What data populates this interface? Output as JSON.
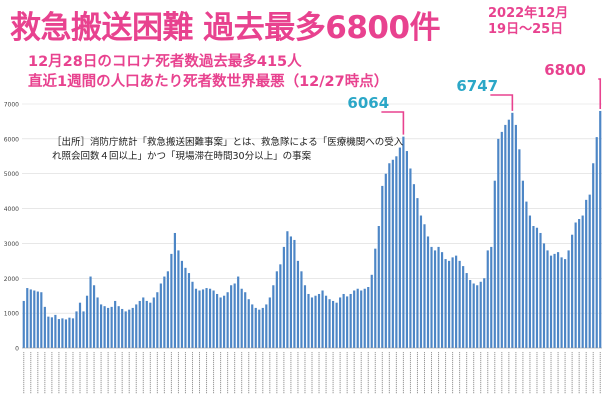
{
  "header": {
    "title": "救急搬送困難 過去最多6800件",
    "period_line1": "2022年12月",
    "period_line2": "19日～25日",
    "subtitle1": "12月28日のコロナ死者数過去最多415人",
    "subtitle2": "直近1週間の人口あたり死者数世界最悪（12/27時点）",
    "source_text": "［出所］消防庁統計「救急搬送困難事案」とは、救急隊による「医療機関への受入れ照会回数４回以上」かつ「現場滞在時間30分以上」の事案"
  },
  "colors": {
    "accent": "#e8428f",
    "bar": "#4d86c6",
    "peak_label": "#2ba7c7",
    "grid": "#d9d9d9"
  },
  "peak_labels": [
    {
      "text": "6064",
      "color": "#2ba7c7"
    },
    {
      "text": "6747",
      "color": "#2ba7c7"
    },
    {
      "text": "6800",
      "color": "#e8428f"
    }
  ],
  "chart_data": {
    "type": "bar",
    "title": "救急搬送困難 過去最多6800件",
    "xlabel": "",
    "ylabel": "",
    "ylim": [
      0,
      7000
    ],
    "yticks": [
      0,
      1000,
      2000,
      3000,
      4000,
      5000,
      6000,
      7000
    ],
    "grid": true,
    "values": [
      1350,
      1720,
      1680,
      1650,
      1620,
      1600,
      1180,
      900,
      880,
      950,
      830,
      850,
      820,
      870,
      850,
      1050,
      1300,
      1050,
      1500,
      2050,
      1800,
      1450,
      1250,
      1200,
      1150,
      1180,
      1350,
      1200,
      1120,
      1050,
      1100,
      1150,
      1250,
      1350,
      1450,
      1350,
      1300,
      1450,
      1600,
      1850,
      2050,
      2200,
      2700,
      3300,
      2800,
      2500,
      2300,
      2150,
      1900,
      1700,
      1650,
      1680,
      1720,
      1700,
      1650,
      1550,
      1450,
      1500,
      1600,
      1800,
      1850,
      2050,
      1700,
      1600,
      1400,
      1250,
      1150,
      1100,
      1150,
      1250,
      1450,
      1800,
      2200,
      2400,
      2900,
      3350,
      3200,
      3100,
      2500,
      2200,
      1800,
      1550,
      1450,
      1500,
      1550,
      1650,
      1500,
      1400,
      1350,
      1300,
      1450,
      1550,
      1480,
      1550,
      1650,
      1700,
      1650,
      1700,
      1750,
      2100,
      2850,
      3500,
      4650,
      5000,
      5300,
      5400,
      5500,
      5750,
      6064,
      5650,
      5150,
      4700,
      4300,
      3800,
      3550,
      3200,
      2900,
      2800,
      2900,
      2750,
      2550,
      2500,
      2600,
      2650,
      2500,
      2350,
      2150,
      1950,
      1850,
      1800,
      1900,
      2000,
      2800,
      2900,
      4800,
      6000,
      6200,
      6400,
      6550,
      6747,
      6400,
      5700,
      4800,
      4200,
      3800,
      3500,
      3450,
      3300,
      3000,
      2800,
      2650,
      2700,
      2750,
      2600,
      2550,
      2800,
      3250,
      3600,
      3700,
      3800,
      4250,
      4400,
      5300,
      6050,
      6800
    ]
  }
}
